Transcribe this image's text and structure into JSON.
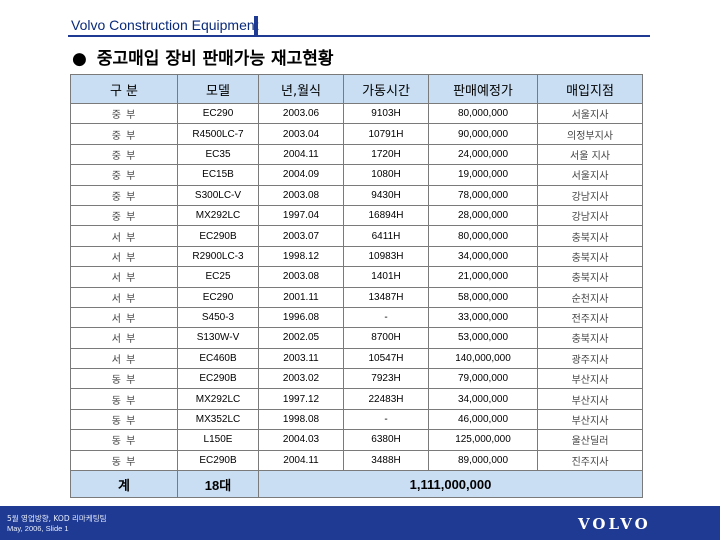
{
  "header": {
    "company": "Volvo Construction Equipment"
  },
  "title": {
    "bullet": "●",
    "text": "중고매입 장비 판매가능 재고현황"
  },
  "table": {
    "columns": [
      "구  분",
      "모델",
      "년,월식",
      "가동시간",
      "판매예정가",
      "매입지점"
    ],
    "rows": [
      [
        "중  부",
        "EC290",
        "2003.06",
        "9103H",
        "80,000,000",
        "서울지사"
      ],
      [
        "중  부",
        "R4500LC-7",
        "2003.04",
        "10791H",
        "90,000,000",
        "의정부지사"
      ],
      [
        "중  부",
        "EC35",
        "2004.11",
        "1720H",
        "24,000,000",
        "서울 지사"
      ],
      [
        "중  부",
        "EC15B",
        "2004.09",
        "1080H",
        "19,000,000",
        "서울지사"
      ],
      [
        "중  부",
        "S300LC-V",
        "2003.08",
        "9430H",
        "78,000,000",
        "강남지사"
      ],
      [
        "중  부",
        "MX292LC",
        "1997.04",
        "16894H",
        "28,000,000",
        "강남지사"
      ],
      [
        "서  부",
        "EC290B",
        "2003.07",
        "6411H",
        "80,000,000",
        "충북지사"
      ],
      [
        "서  부",
        "R2900LC-3",
        "1998.12",
        "10983H",
        "34,000,000",
        "충북지사"
      ],
      [
        "서  부",
        "EC25",
        "2003.08",
        "1401H",
        "21,000,000",
        "충북지사"
      ],
      [
        "서  부",
        "EC290",
        "2001.11",
        "13487H",
        "58,000,000",
        "순천지사"
      ],
      [
        "서  부",
        "S450-3",
        "1996.08",
        "-",
        "33,000,000",
        "전주지사"
      ],
      [
        "서  부",
        "S130W-V",
        "2002.05",
        "8700H",
        "53,000,000",
        "충북지사"
      ],
      [
        "서  부",
        "EC460B",
        "2003.11",
        "10547H",
        "140,000,000",
        "광주지사"
      ],
      [
        "동  부",
        "EC290B",
        "2003.02",
        "7923H",
        "79,000,000",
        "부산지사"
      ],
      [
        "동  부",
        "MX292LC",
        "1997.12",
        "22483H",
        "34,000,000",
        "부산지사"
      ],
      [
        "동  부",
        "MX352LC",
        "1998.08",
        "-",
        "46,000,000",
        "부산지사"
      ],
      [
        "동  부",
        "L150E",
        "2004.03",
        "6380H",
        "125,000,000",
        "울산딜러"
      ],
      [
        "동  부",
        "EC290B",
        "2004.11",
        "3488H",
        "89,000,000",
        "진주지사"
      ]
    ],
    "total": {
      "label": "계",
      "count": "18대",
      "amount": "1,111,000,000"
    }
  },
  "footer": {
    "line1": "5월 영업방향, KOD 리마케팅팀",
    "line2": "May, 2006, Slide 1",
    "logo": "VOLVO"
  },
  "colors": {
    "header_fill": "#c9def2",
    "brand_blue": "#1f3a93"
  }
}
